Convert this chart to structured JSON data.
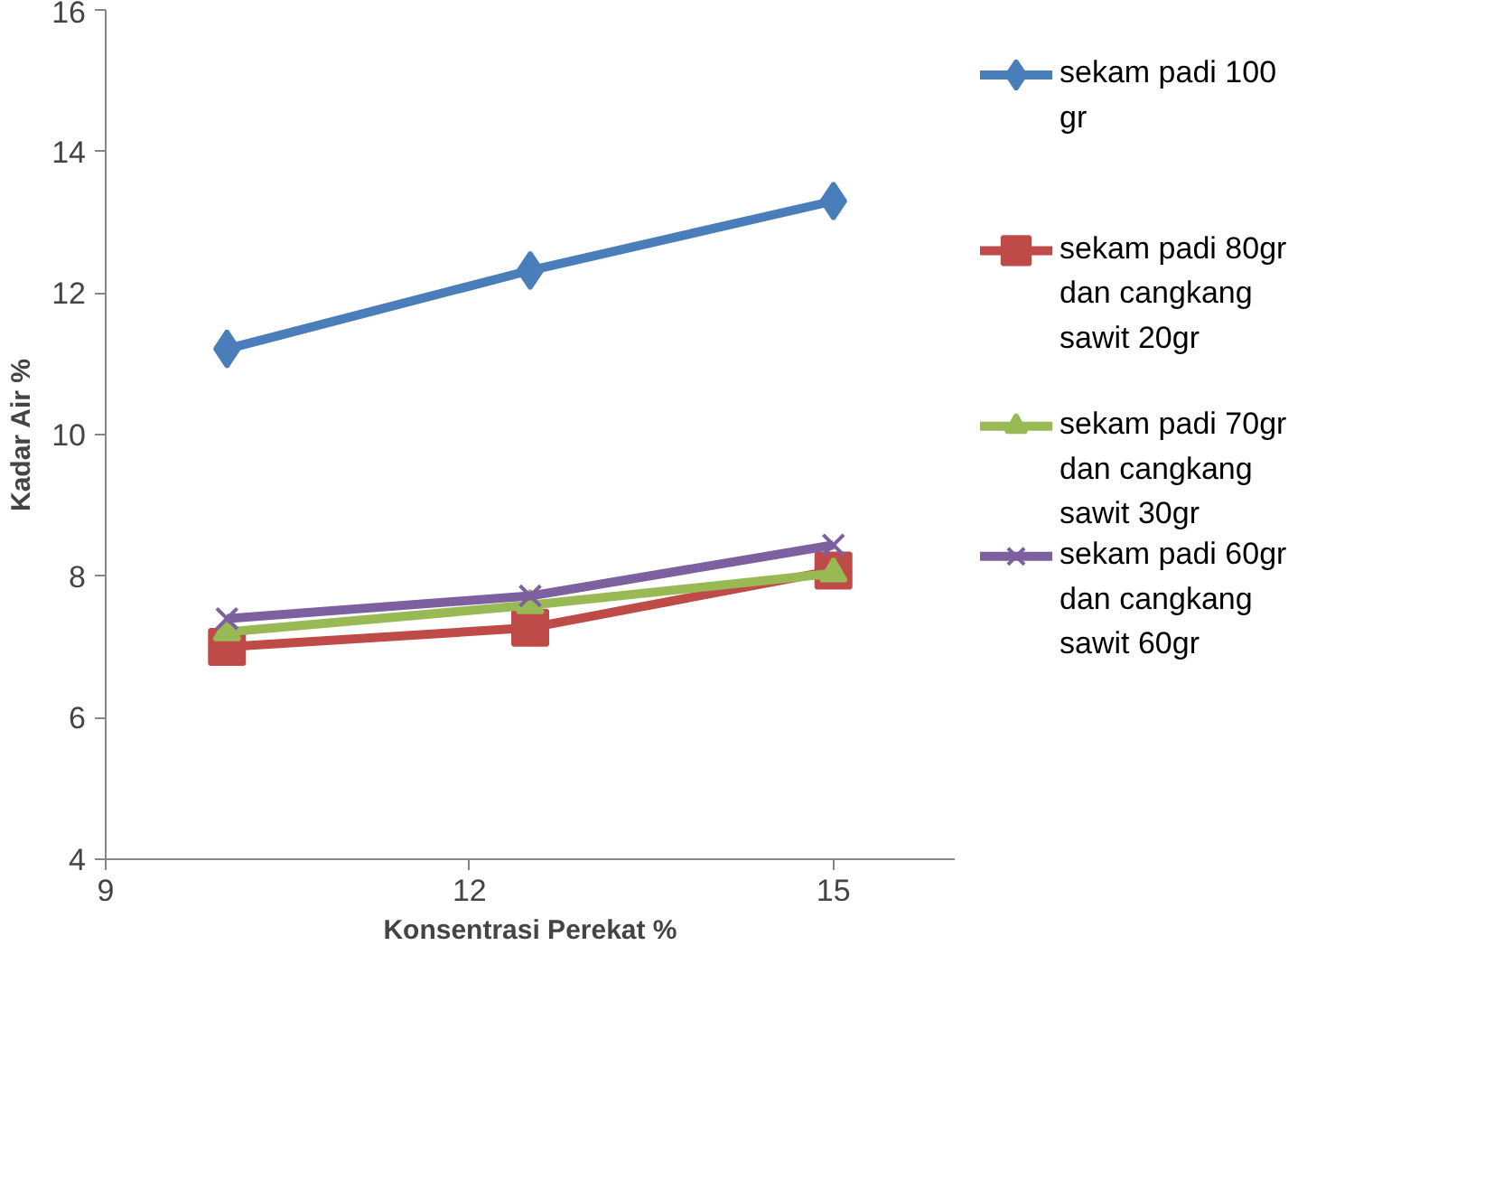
{
  "chart_data": {
    "type": "line",
    "xlabel": "Konsentrasi Perekat %",
    "ylabel": "Kadar Air %",
    "x": [
      10,
      12.5,
      15
    ],
    "series": [
      {
        "name": "sekam padi 100 gr",
        "color": "#4a7ebb",
        "marker": "diamond",
        "values": [
          11.21,
          12.32,
          13.3
        ]
      },
      {
        "name": "sekam padi 80gr dan cangkang sawit 20gr",
        "color": "#be4b48",
        "marker": "square",
        "values": [
          7.0,
          7.27,
          8.08
        ]
      },
      {
        "name": "sekam padi 70gr dan cangkang sawit 30gr",
        "color": "#98b954",
        "marker": "triangle",
        "values": [
          7.21,
          7.59,
          8.04
        ]
      },
      {
        "name": "sekam padi 60gr dan cangkang sawit 60gr",
        "color": "#7d60a0",
        "marker": "cross",
        "values": [
          7.4,
          7.72,
          8.44
        ]
      }
    ],
    "xlim": [
      9,
      16
    ],
    "xticks": [
      9,
      12,
      15
    ],
    "ylim": [
      4,
      16
    ],
    "yticks": [
      4,
      6,
      8,
      10,
      12,
      14,
      16
    ],
    "grid": false,
    "legend": "right",
    "line_style": "solid"
  }
}
